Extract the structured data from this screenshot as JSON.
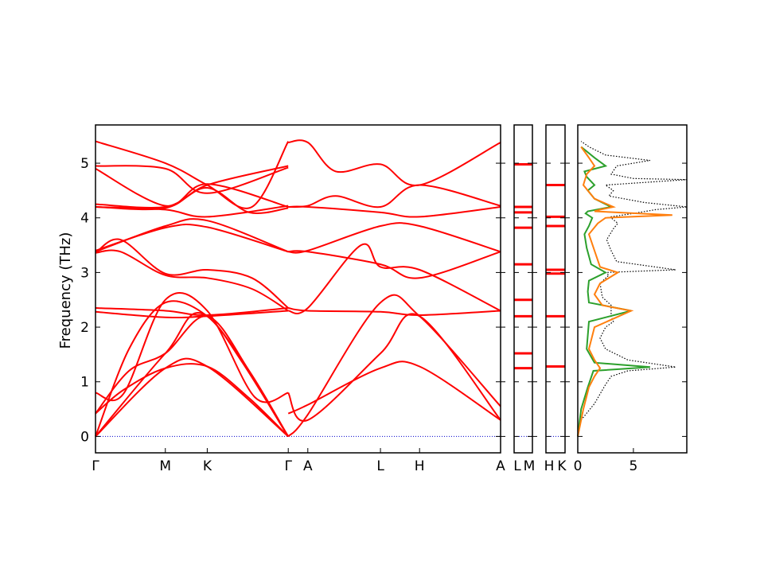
{
  "chart_data": [
    {
      "type": "line",
      "ylabel": "Frequency (THz)",
      "ylim": [
        -0.3,
        5.7
      ],
      "yticks": [
        0,
        1,
        2,
        3,
        4,
        5
      ],
      "xticks": [
        "Γ",
        "M",
        "K",
        "Γ",
        "A",
        "L",
        "H",
        "A"
      ],
      "xlim": [
        0,
        14.5
      ],
      "xtick_positions": [
        0,
        2.5,
        4.0,
        6.9,
        7.6,
        10.2,
        11.6,
        14.5
      ],
      "grid": false,
      "series_color": "#ff0000",
      "zero_line_color": "#0000cc",
      "branches": [
        {
          "x": [
            0,
            2.5,
            4.0,
            6.9
          ],
          "y": [
            0.0,
            1.25,
            1.28,
            0.0
          ]
        },
        {
          "x": [
            0,
            2.5,
            4.0,
            6.9
          ],
          "y": [
            0.0,
            1.52,
            2.2,
            0.0
          ]
        },
        {
          "x": [
            0,
            1.2,
            2.5,
            4.0,
            5.2,
            6.9
          ],
          "y": [
            0.0,
            1.6,
            2.45,
            2.2,
            1.4,
            0.0
          ]
        },
        {
          "x": [
            0,
            1.0,
            2.5,
            4.0,
            5.5,
            6.9
          ],
          "y": [
            0.42,
            0.85,
            1.25,
            1.28,
            0.7,
            0.0
          ]
        },
        {
          "x": [
            0,
            1.2,
            2.5,
            4.0,
            5.5,
            6.9
          ],
          "y": [
            0.42,
            1.2,
            1.52,
            2.2,
            1.2,
            0.0
          ]
        },
        {
          "x": [
            0,
            1.0,
            2.5,
            4.0,
            5.7,
            6.9
          ],
          "y": [
            0.8,
            0.78,
            2.5,
            2.3,
            0.72,
            0.8
          ]
        },
        {
          "x": [
            0,
            2.5,
            4.0,
            6.9
          ],
          "y": [
            2.28,
            2.18,
            2.2,
            2.3
          ]
        },
        {
          "x": [
            0,
            2.5,
            4.0,
            6.9
          ],
          "y": [
            2.35,
            2.3,
            2.22,
            2.35
          ]
        },
        {
          "x": [
            0,
            0.9,
            2.5,
            4.0,
            5.6,
            6.9
          ],
          "y": [
            3.36,
            3.6,
            2.98,
            3.05,
            2.9,
            2.35
          ]
        },
        {
          "x": [
            0,
            0.9,
            2.5,
            4.0,
            5.6,
            6.9
          ],
          "y": [
            3.36,
            3.38,
            2.95,
            2.9,
            2.7,
            2.3
          ]
        },
        {
          "x": [
            0,
            2.5,
            4.0,
            6.9
          ],
          "y": [
            3.38,
            3.85,
            3.95,
            3.38
          ]
        },
        {
          "x": [
            0,
            2.5,
            4.0,
            6.9
          ],
          "y": [
            3.4,
            3.82,
            3.83,
            3.38
          ]
        },
        {
          "x": [
            0,
            2.5,
            4.0,
            6.9
          ],
          "y": [
            4.2,
            4.15,
            4.02,
            4.22
          ]
        },
        {
          "x": [
            0,
            2.5,
            4.0,
            6.9
          ],
          "y": [
            4.2,
            4.18,
            4.6,
            4.95
          ]
        },
        {
          "x": [
            0,
            2.5,
            4.0,
            5.5,
            6.9
          ],
          "y": [
            4.25,
            4.2,
            4.55,
            4.1,
            4.18
          ]
        },
        {
          "x": [
            0,
            2.5,
            4.0,
            6.9
          ],
          "y": [
            4.9,
            4.22,
            4.62,
            4.2
          ]
        },
        {
          "x": [
            0,
            2.5,
            4.0,
            5.6,
            6.9
          ],
          "y": [
            5.4,
            5.0,
            4.6,
            4.2,
            5.4
          ]
        },
        {
          "x": [
            0,
            2.5,
            4.0,
            6.9
          ],
          "y": [
            4.95,
            4.9,
            4.45,
            4.92
          ]
        },
        {
          "x": [
            6.9,
            7.6,
            10.2,
            11.6,
            14.5
          ],
          "y": [
            0.8,
            0.3,
            1.52,
            2.2,
            0.3
          ]
        },
        {
          "x": [
            6.9,
            7.6,
            10.2,
            11.6,
            14.5
          ],
          "y": [
            0.0,
            0.4,
            2.45,
            2.2,
            0.55
          ]
        },
        {
          "x": [
            6.9,
            7.6,
            10.2,
            11.6,
            14.5
          ],
          "y": [
            0.42,
            0.58,
            1.25,
            1.28,
            0.3
          ]
        },
        {
          "x": [
            6.9,
            7.6,
            10.2,
            11.6,
            14.5
          ],
          "y": [
            2.35,
            2.3,
            2.28,
            2.22,
            2.3
          ]
        },
        {
          "x": [
            6.9,
            7.6,
            9.5,
            10.2,
            11.6,
            14.5
          ],
          "y": [
            2.3,
            2.35,
            3.5,
            3.1,
            3.05,
            2.3
          ]
        },
        {
          "x": [
            6.9,
            7.6,
            10.2,
            11.6,
            14.5
          ],
          "y": [
            3.38,
            3.38,
            3.15,
            2.9,
            3.38
          ]
        },
        {
          "x": [
            6.9,
            7.6,
            10.2,
            11.6,
            14.5
          ],
          "y": [
            3.38,
            3.4,
            3.85,
            3.85,
            3.38
          ]
        },
        {
          "x": [
            6.9,
            7.6,
            10.2,
            11.6,
            14.5
          ],
          "y": [
            4.2,
            4.2,
            4.1,
            4.02,
            4.2
          ]
        },
        {
          "x": [
            6.9,
            7.6,
            8.6,
            10.2,
            11.6,
            14.5
          ],
          "y": [
            4.2,
            4.22,
            4.4,
            4.2,
            4.6,
            4.22
          ]
        },
        {
          "x": [
            6.9,
            7.6,
            8.6,
            10.2,
            11.6,
            14.5
          ],
          "y": [
            5.38,
            5.38,
            4.85,
            4.98,
            4.6,
            5.38
          ]
        }
      ]
    },
    {
      "type": "line",
      "xticks": [
        "L",
        "M"
      ],
      "ylim": [
        -0.3,
        5.7
      ],
      "levels": [
        0.0,
        1.25,
        1.52,
        2.2,
        2.5,
        3.15,
        3.82,
        4.1,
        4.2,
        4.98
      ]
    },
    {
      "type": "line",
      "xticks": [
        "H",
        "K"
      ],
      "ylim": [
        -0.3,
        5.7
      ],
      "levels": [
        0.0,
        1.28,
        2.2,
        2.98,
        3.05,
        3.85,
        4.02,
        4.6
      ]
    },
    {
      "type": "line",
      "ylim": [
        -0.3,
        5.7
      ],
      "xlim": [
        0,
        9.8
      ],
      "xticks": [
        "0",
        "5"
      ],
      "xtick_values": [
        0,
        5
      ],
      "series": [
        {
          "color": "#000000",
          "style": "dotted",
          "x": [
            0,
            0.3,
            1.5,
            2.5,
            3.0,
            4.5,
            8.8,
            4.5,
            2.5,
            2.0,
            2.5,
            3.2,
            3.0,
            3.0,
            2.2,
            2.0,
            2.8,
            2.5,
            8.8,
            3.5,
            3.0,
            2.6,
            3.2,
            3.6,
            3.0,
            3.0,
            5.0,
            7.0,
            9.8,
            6.0,
            2.8,
            3.2,
            2.5,
            9.8,
            5.0,
            3.0,
            3.5,
            6.5,
            2.5,
            1.0,
            0.3
          ],
          "y": [
            0.0,
            0.3,
            0.6,
            0.95,
            1.1,
            1.2,
            1.27,
            1.4,
            1.6,
            1.8,
            2.0,
            2.1,
            2.2,
            2.4,
            2.55,
            2.8,
            2.95,
            3.0,
            3.05,
            3.2,
            3.4,
            3.6,
            3.8,
            3.9,
            4.0,
            4.02,
            4.08,
            4.15,
            4.2,
            4.28,
            4.4,
            4.5,
            4.6,
            4.7,
            4.72,
            4.8,
            4.95,
            5.05,
            5.15,
            5.3,
            5.4
          ]
        },
        {
          "color": "#2ca02c",
          "style": "solid",
          "x": [
            0,
            0.3,
            0.9,
            1.4,
            6.5,
            1.5,
            0.8,
            1.0,
            4.8,
            1.0,
            0.9,
            1.0,
            2.5,
            1.2,
            0.8,
            0.6,
            1.0,
            1.3,
            0.7,
            0.9,
            3.0,
            1.5,
            0.9,
            1.5,
            0.8,
            0.6,
            2.5,
            1.5,
            0.3
          ],
          "y": [
            0.0,
            0.5,
            0.9,
            1.2,
            1.27,
            1.35,
            1.6,
            2.1,
            2.3,
            2.45,
            2.65,
            2.85,
            3.0,
            3.15,
            3.45,
            3.7,
            3.85,
            4.0,
            4.08,
            4.12,
            4.2,
            4.35,
            4.5,
            4.6,
            4.75,
            4.85,
            4.95,
            5.1,
            5.3
          ]
        },
        {
          "color": "#ff7f0e",
          "style": "solid",
          "x": [
            0,
            0.5,
            1.0,
            1.5,
            2.0,
            1.5,
            1.0,
            1.5,
            4.8,
            2.2,
            1.5,
            2.0,
            3.6,
            2.0,
            1.5,
            1.0,
            1.8,
            2.5,
            8.5,
            1.5,
            2.0,
            3.2,
            1.5,
            0.5,
            0.8,
            1.5,
            1.0,
            0.3
          ],
          "y": [
            0.0,
            0.5,
            0.9,
            1.1,
            1.25,
            1.4,
            1.6,
            2.0,
            2.3,
            2.4,
            2.6,
            2.8,
            3.0,
            3.1,
            3.4,
            3.7,
            3.9,
            4.0,
            4.05,
            4.12,
            4.15,
            4.2,
            4.35,
            4.6,
            4.8,
            4.95,
            5.1,
            5.3
          ]
        }
      ]
    }
  ]
}
